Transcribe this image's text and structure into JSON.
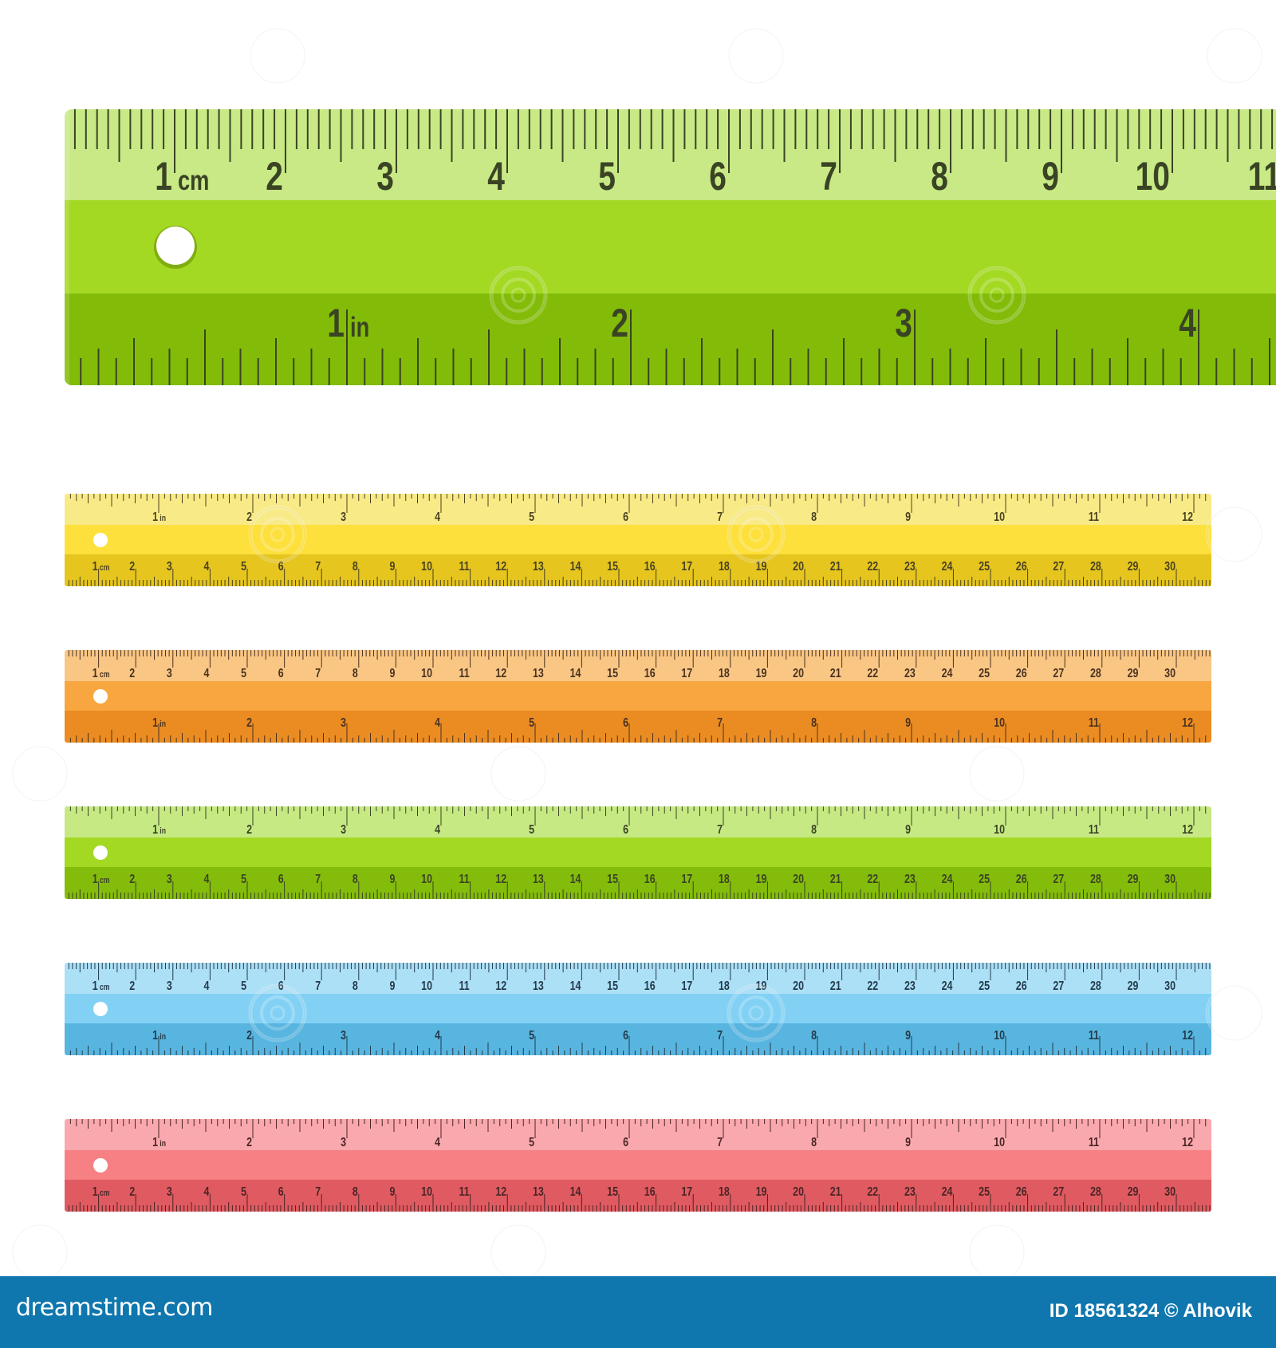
{
  "main_ruler": {
    "colors": {
      "light": "#c8e985",
      "mid": "#a3d923",
      "dark": "#82bc08",
      "ink": "#3a4424"
    },
    "top_scale": {
      "unit": "cm",
      "labels": [
        "1",
        "2",
        "3",
        "4",
        "5",
        "6",
        "7",
        "8",
        "9",
        "10",
        "11"
      ]
    },
    "bottom_scale": {
      "unit": "in",
      "labels": [
        "1",
        "2",
        "3",
        "4"
      ]
    }
  },
  "rulers": [
    {
      "color_name": "yellow",
      "colors": {
        "light": "#f8ea86",
        "mid": "#fde03c",
        "dark": "#e5c51e",
        "ink": "#4a4220"
      },
      "top_scale": {
        "unit": "in",
        "labels": [
          "1",
          "2",
          "3",
          "4",
          "5",
          "6",
          "7",
          "8",
          "9",
          "10",
          "11",
          "12"
        ]
      },
      "bottom_scale": {
        "unit": "cm",
        "labels": [
          "1",
          "2",
          "3",
          "4",
          "5",
          "6",
          "7",
          "8",
          "9",
          "10",
          "11",
          "12",
          "13",
          "14",
          "15",
          "16",
          "17",
          "18",
          "19",
          "20",
          "21",
          "22",
          "23",
          "24",
          "25",
          "26",
          "27",
          "28",
          "29",
          "30"
        ]
      }
    },
    {
      "color_name": "orange",
      "colors": {
        "light": "#f9c684",
        "mid": "#f8a63f",
        "dark": "#ea8c22",
        "ink": "#4a3220"
      },
      "top_scale": {
        "unit": "cm",
        "labels": [
          "1",
          "2",
          "3",
          "4",
          "5",
          "6",
          "7",
          "8",
          "9",
          "10",
          "11",
          "12",
          "13",
          "14",
          "15",
          "16",
          "17",
          "18",
          "19",
          "20",
          "21",
          "22",
          "23",
          "24",
          "25",
          "26",
          "27",
          "28",
          "29",
          "30"
        ]
      },
      "bottom_scale": {
        "unit": "in",
        "labels": [
          "1",
          "2",
          "3",
          "4",
          "5",
          "6",
          "7",
          "8",
          "9",
          "10",
          "11",
          "12"
        ]
      }
    },
    {
      "color_name": "green",
      "colors": {
        "light": "#c6e983",
        "mid": "#a3d823",
        "dark": "#84bc0b",
        "ink": "#3a4424"
      },
      "top_scale": {
        "unit": "in",
        "labels": [
          "1",
          "2",
          "3",
          "4",
          "5",
          "6",
          "7",
          "8",
          "9",
          "10",
          "11",
          "12"
        ]
      },
      "bottom_scale": {
        "unit": "cm",
        "labels": [
          "1",
          "2",
          "3",
          "4",
          "5",
          "6",
          "7",
          "8",
          "9",
          "10",
          "11",
          "12",
          "13",
          "14",
          "15",
          "16",
          "17",
          "18",
          "19",
          "20",
          "21",
          "22",
          "23",
          "24",
          "25",
          "26",
          "27",
          "28",
          "29",
          "30"
        ]
      }
    },
    {
      "color_name": "blue",
      "colors": {
        "light": "#ace0f7",
        "mid": "#82d1f5",
        "dark": "#58b5e0",
        "ink": "#233a4a"
      },
      "top_scale": {
        "unit": "cm",
        "labels": [
          "1",
          "2",
          "3",
          "4",
          "5",
          "6",
          "7",
          "8",
          "9",
          "10",
          "11",
          "12",
          "13",
          "14",
          "15",
          "16",
          "17",
          "18",
          "19",
          "20",
          "21",
          "22",
          "23",
          "24",
          "25",
          "26",
          "27",
          "28",
          "29",
          "30"
        ]
      },
      "bottom_scale": {
        "unit": "in",
        "labels": [
          "1",
          "2",
          "3",
          "4",
          "5",
          "6",
          "7",
          "8",
          "9",
          "10",
          "11",
          "12"
        ]
      }
    },
    {
      "color_name": "red",
      "colors": {
        "light": "#f9a9ad",
        "mid": "#f68084",
        "dark": "#e05b61",
        "ink": "#4a2426"
      },
      "top_scale": {
        "unit": "in",
        "labels": [
          "1",
          "2",
          "3",
          "4",
          "5",
          "6",
          "7",
          "8",
          "9",
          "10",
          "11",
          "12"
        ]
      },
      "bottom_scale": {
        "unit": "cm",
        "labels": [
          "1",
          "2",
          "3",
          "4",
          "5",
          "6",
          "7",
          "8",
          "9",
          "10",
          "11",
          "12",
          "13",
          "14",
          "15",
          "16",
          "17",
          "18",
          "19",
          "20",
          "21",
          "22",
          "23",
          "24",
          "25",
          "26",
          "27",
          "28",
          "29",
          "30"
        ]
      }
    }
  ],
  "watermark": "dreamstime",
  "footer": {
    "brand": "dreamstime.com",
    "credit": "ID 18561324 © Alhovik",
    "background": "#0f77ae"
  }
}
